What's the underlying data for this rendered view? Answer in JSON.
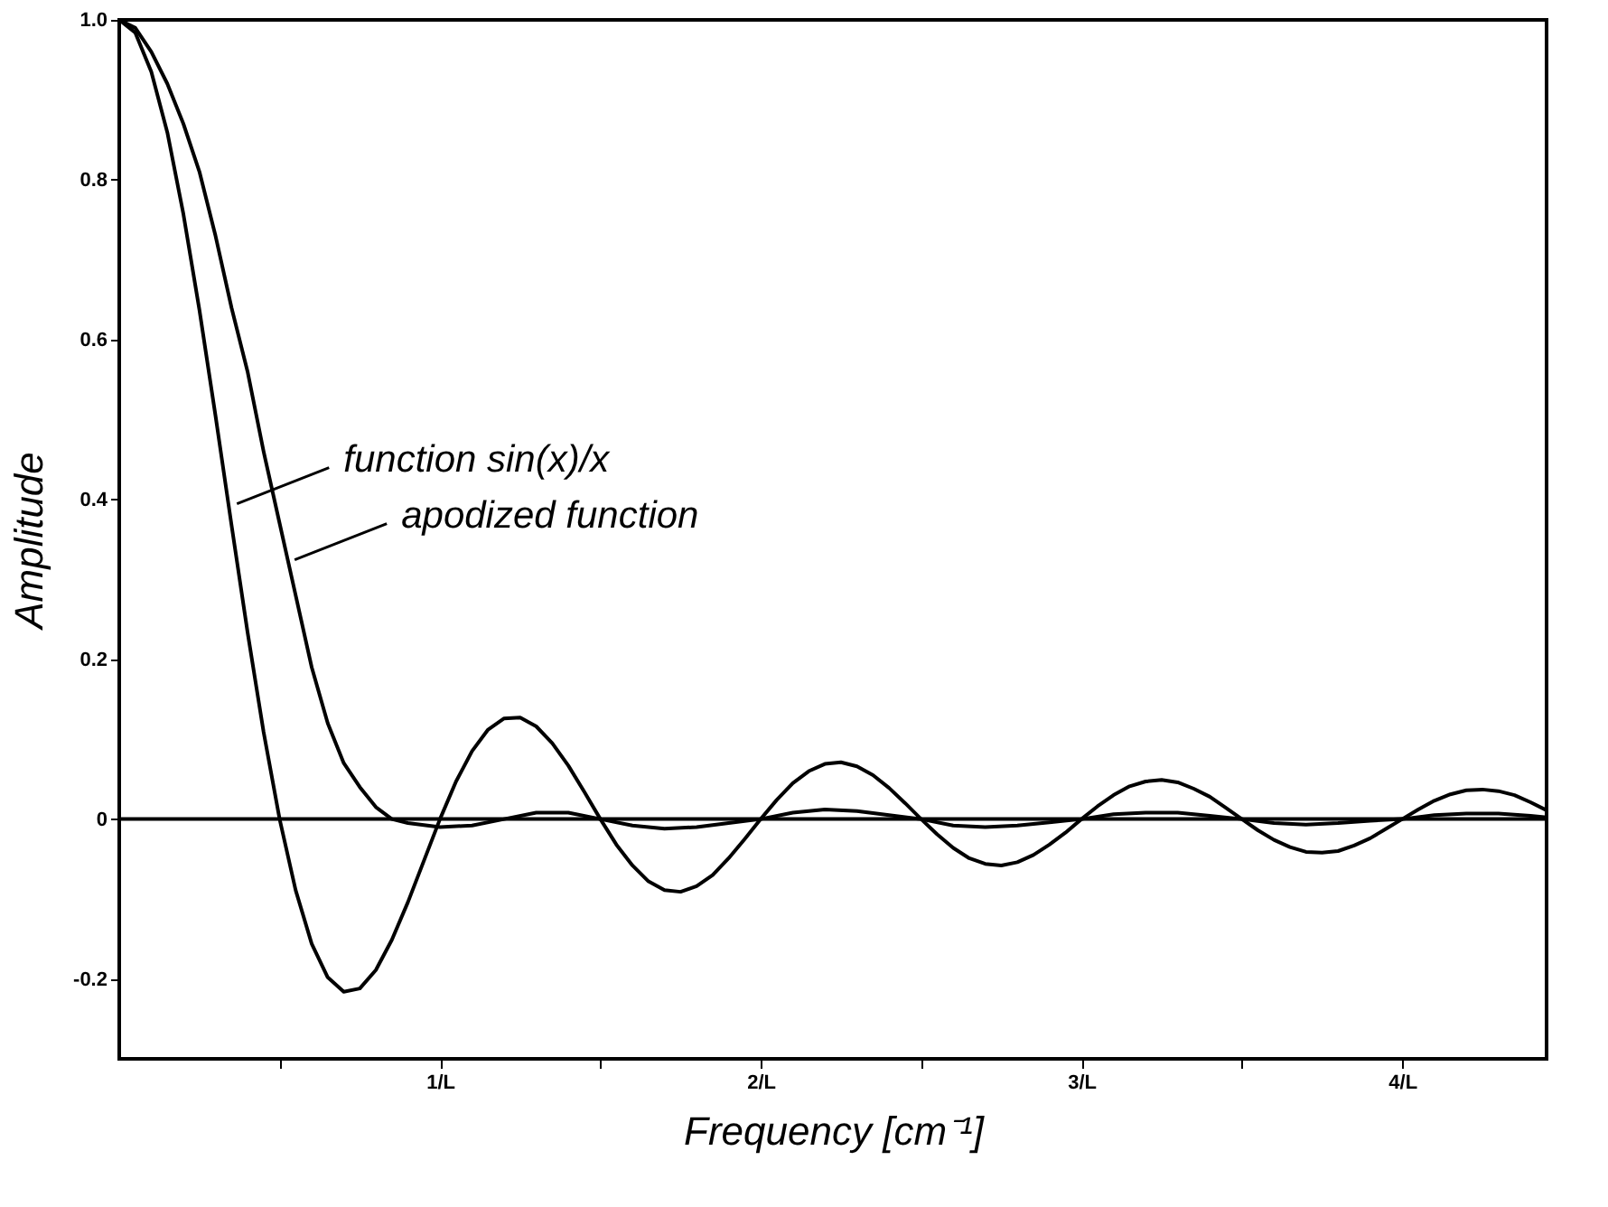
{
  "chart_data": {
    "type": "line",
    "xlabel": "Frequency [cm⁻¹]",
    "ylabel": "Amplitude",
    "xlim": [
      0,
      4.45
    ],
    "ylim": [
      -0.3,
      1.0
    ],
    "xticks": [
      {
        "value": 0.5,
        "label": null
      },
      {
        "value": 1,
        "label": "1/L"
      },
      {
        "value": 1.5,
        "label": null
      },
      {
        "value": 2,
        "label": "2/L"
      },
      {
        "value": 2.5,
        "label": null
      },
      {
        "value": 3,
        "label": "3/L"
      },
      {
        "value": 3.5,
        "label": null
      },
      {
        "value": 4,
        "label": "4/L"
      }
    ],
    "yticks": [
      {
        "value": -0.2,
        "label": "-0.2"
      },
      {
        "value": 0,
        "label": "0"
      },
      {
        "value": 0.2,
        "label": "0.2"
      },
      {
        "value": 0.4,
        "label": "0.4"
      },
      {
        "value": 0.6,
        "label": "0.6"
      },
      {
        "value": 0.8,
        "label": "0.8"
      },
      {
        "value": 1.0,
        "label": "1.0"
      }
    ],
    "grid": false,
    "line_style": "solid",
    "marker": "none",
    "ref_lines": [
      {
        "axis": "y",
        "value": 0,
        "color": "#000000"
      }
    ],
    "annotations": [
      {
        "text": "function sin(x)/x",
        "x": 0.35,
        "y": 0.39
      },
      {
        "text": "apodized function",
        "x": 0.53,
        "y": 0.32
      }
    ],
    "series": [
      {
        "color": "#000000",
        "x": [
          0,
          0.05,
          0.1,
          0.15,
          0.2,
          0.25,
          0.3,
          0.35,
          0.4,
          0.45,
          0.5,
          0.55,
          0.6,
          0.65,
          0.7,
          0.75,
          0.8,
          0.85,
          0.9,
          0.95,
          1.0,
          1.05,
          1.1,
          1.15,
          1.2,
          1.25,
          1.3,
          1.35,
          1.4,
          1.45,
          1.5,
          1.55,
          1.6,
          1.65,
          1.7,
          1.75,
          1.8,
          1.85,
          1.9,
          1.95,
          2.0,
          2.05,
          2.1,
          2.15,
          2.2,
          2.25,
          2.3,
          2.35,
          2.4,
          2.45,
          2.5,
          2.55,
          2.6,
          2.65,
          2.7,
          2.75,
          2.8,
          2.85,
          2.9,
          2.95,
          3.0,
          3.05,
          3.1,
          3.15,
          3.2,
          3.25,
          3.3,
          3.35,
          3.4,
          3.45,
          3.5,
          3.55,
          3.6,
          3.65,
          3.7,
          3.75,
          3.8,
          3.85,
          3.9,
          3.95,
          4.0,
          4.05,
          4.1,
          4.15,
          4.2,
          4.25,
          4.3,
          4.35,
          4.4,
          4.45
        ],
        "values": [
          1,
          0.984,
          0.935,
          0.859,
          0.757,
          0.637,
          0.505,
          0.368,
          0.234,
          0.109,
          0,
          -0.089,
          -0.156,
          -0.198,
          -0.216,
          -0.212,
          -0.189,
          -0.151,
          -0.104,
          -0.052,
          0,
          0.047,
          0.085,
          0.112,
          0.126,
          0.127,
          0.116,
          0.095,
          0.067,
          0.034,
          0,
          -0.032,
          -0.058,
          -0.078,
          -0.089,
          -0.091,
          -0.084,
          -0.07,
          -0.049,
          -0.025,
          0,
          0.024,
          0.045,
          0.06,
          0.069,
          0.071,
          0.066,
          0.055,
          0.039,
          0.02,
          0,
          -0.019,
          -0.036,
          -0.049,
          -0.056,
          -0.058,
          -0.054,
          -0.045,
          -0.032,
          -0.017,
          0,
          0.016,
          0.03,
          0.041,
          0.047,
          0.049,
          0.046,
          0.038,
          0.028,
          0.014,
          0,
          -0.014,
          -0.026,
          -0.035,
          -0.041,
          -0.042,
          -0.04,
          -0.033,
          -0.024,
          -0.012,
          0,
          0.012,
          0.023,
          0.031,
          0.036,
          0.037,
          0.035,
          0.03,
          0.021,
          0.011
        ]
      },
      {
        "color": "#000000",
        "x": [
          0,
          0.05,
          0.1,
          0.15,
          0.2,
          0.25,
          0.3,
          0.35,
          0.4,
          0.45,
          0.5,
          0.55,
          0.6,
          0.65,
          0.7,
          0.75,
          0.8,
          0.85,
          0.9,
          1.0,
          1.1,
          1.2,
          1.3,
          1.4,
          1.5,
          1.6,
          1.7,
          1.8,
          1.9,
          2.0,
          2.1,
          2.2,
          2.3,
          2.4,
          2.5,
          2.6,
          2.7,
          2.8,
          2.9,
          3.0,
          3.1,
          3.2,
          3.3,
          3.4,
          3.5,
          3.6,
          3.7,
          3.8,
          3.9,
          4.0,
          4.1,
          4.2,
          4.3,
          4.4,
          4.45
        ],
        "values": [
          1.0,
          0.99,
          0.96,
          0.92,
          0.87,
          0.81,
          0.73,
          0.64,
          0.56,
          0.46,
          0.37,
          0.28,
          0.19,
          0.12,
          0.07,
          0.04,
          0.015,
          0.0,
          -0.005,
          -0.01,
          -0.008,
          0.0,
          0.008,
          0.008,
          0.0,
          -0.008,
          -0.012,
          -0.01,
          -0.005,
          0,
          0.008,
          0.012,
          0.01,
          0.005,
          0,
          -0.008,
          -0.01,
          -0.008,
          -0.004,
          0,
          0.006,
          0.008,
          0.008,
          0.004,
          0,
          -0.005,
          -0.007,
          -0.005,
          -0.002,
          0,
          0.005,
          0.007,
          0.007,
          0.004,
          0.002
        ]
      }
    ]
  }
}
